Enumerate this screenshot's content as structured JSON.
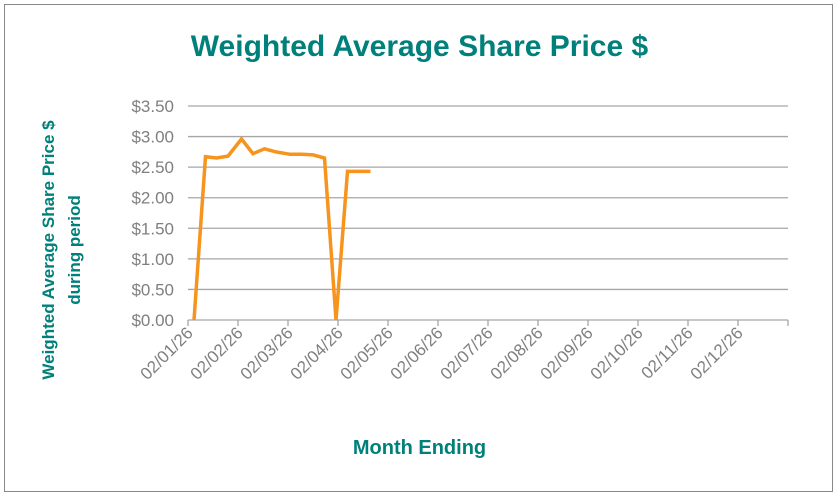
{
  "chart_data": {
    "type": "line",
    "title": "Weighted Average Share Price $",
    "xlabel": "Month Ending",
    "ylabel_lines": [
      "Weighted Average Share Price $",
      "during period"
    ],
    "ylim": [
      0,
      3.5
    ],
    "yticks": [
      0,
      0.5,
      1.0,
      1.5,
      2.0,
      2.5,
      3.0,
      3.5
    ],
    "ytick_labels": [
      "$0.00",
      "$0.50",
      "$1.00",
      "$1.50",
      "$2.00",
      "$2.50",
      "$3.00",
      "$3.50"
    ],
    "categories": [
      "02/01/26",
      "02/02/26",
      "02/03/26",
      "02/04/26",
      "02/05/26",
      "02/06/26",
      "02/07/26",
      "02/08/26",
      "02/09/26",
      "02/10/26",
      "02/11/26",
      "02/12/26"
    ],
    "grid": true,
    "series": [
      {
        "color": "#F7941D",
        "points": [
          {
            "x": 0.0,
            "y": 0.0
          },
          {
            "x": 0.23,
            "y": 2.67
          },
          {
            "x": 0.45,
            "y": 2.65
          },
          {
            "x": 0.68,
            "y": 2.68
          },
          {
            "x": 0.95,
            "y": 2.96
          },
          {
            "x": 1.18,
            "y": 2.72
          },
          {
            "x": 1.41,
            "y": 2.8
          },
          {
            "x": 1.64,
            "y": 2.75
          },
          {
            "x": 1.92,
            "y": 2.71
          },
          {
            "x": 2.15,
            "y": 2.71
          },
          {
            "x": 2.38,
            "y": 2.7
          },
          {
            "x": 2.61,
            "y": 2.65
          },
          {
            "x": 2.84,
            "y": 0.0
          },
          {
            "x": 3.07,
            "y": 2.43
          },
          {
            "x": 3.3,
            "y": 2.43
          },
          {
            "x": 3.53,
            "y": 2.43
          }
        ]
      }
    ]
  },
  "colors": {
    "title": "#00807A",
    "axis_text": "#7F7F7F",
    "grid": "#A6A6A6"
  }
}
